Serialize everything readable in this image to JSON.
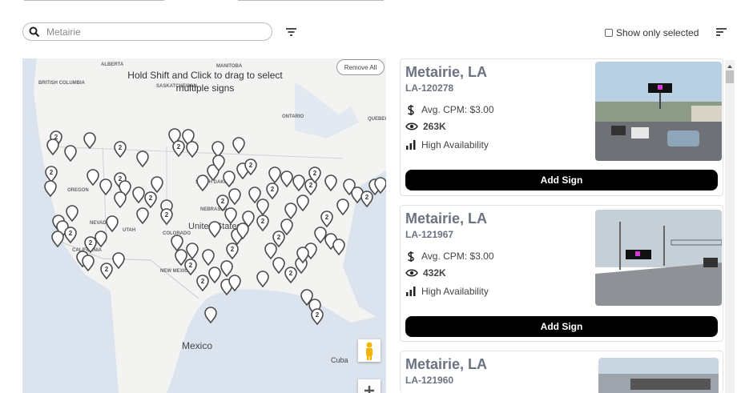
{
  "search": {
    "placeholder": "Metairie"
  },
  "show_only_selected": "Show only selected",
  "map": {
    "hint": "Hold Shift and Click to drag to select multiple signs",
    "remove_all": "Remove All",
    "cluster_label": "2",
    "labels": [
      "ALBERTA",
      "MANITOBA",
      "BRITISH COLUMBIA",
      "SASKATCHEWAN",
      "ONTARIO",
      "QUEBEC",
      "OREGON",
      "SOUTH DAKOTA",
      "NEBRASKA",
      "NEVADA",
      "UTAH",
      "United States",
      "COLORADO",
      "CALIFORNIA",
      "NEW MEXICO",
      "Mexico",
      "Cuba"
    ]
  },
  "cards": [
    {
      "title": "Metairie, LA",
      "id": "LA-120278",
      "cpm": "Avg. CPM: $3.00",
      "impressions": "263K",
      "availability": "High Availability",
      "button": "Add Sign"
    },
    {
      "title": "Metairie, LA",
      "id": "LA-121967",
      "cpm": "Avg. CPM: $3.00",
      "impressions": "432K",
      "availability": "High Availability",
      "button": "Add Sign"
    },
    {
      "title": "Metairie, LA",
      "id": "LA-121960"
    }
  ]
}
